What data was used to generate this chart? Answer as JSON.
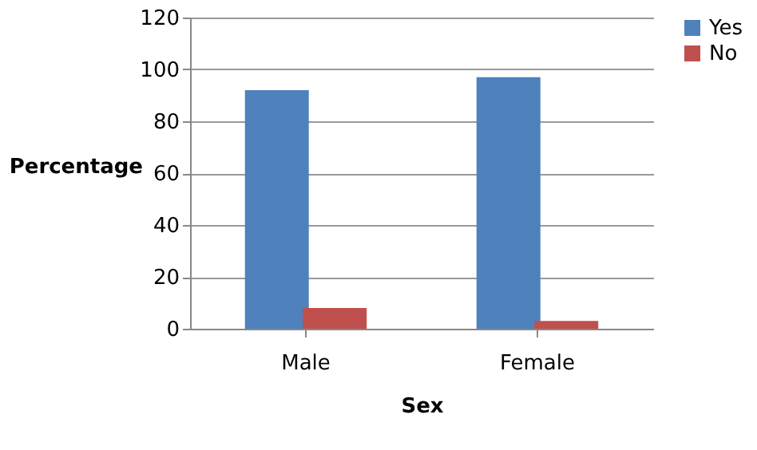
{
  "chart_data": {
    "type": "bar",
    "xlabel": "Sex",
    "ylabel": "Percentage",
    "categories": [
      "Male",
      "Female"
    ],
    "series": [
      {
        "name": "Yes",
        "color": "#4f81bd",
        "values": [
          92,
          97
        ]
      },
      {
        "name": "No",
        "color": "#c0504d",
        "values": [
          8,
          3
        ]
      }
    ],
    "ylim": [
      0,
      120
    ],
    "yticks": [
      0,
      20,
      40,
      60,
      80,
      100,
      120
    ],
    "grid": "y",
    "legend": "right"
  }
}
